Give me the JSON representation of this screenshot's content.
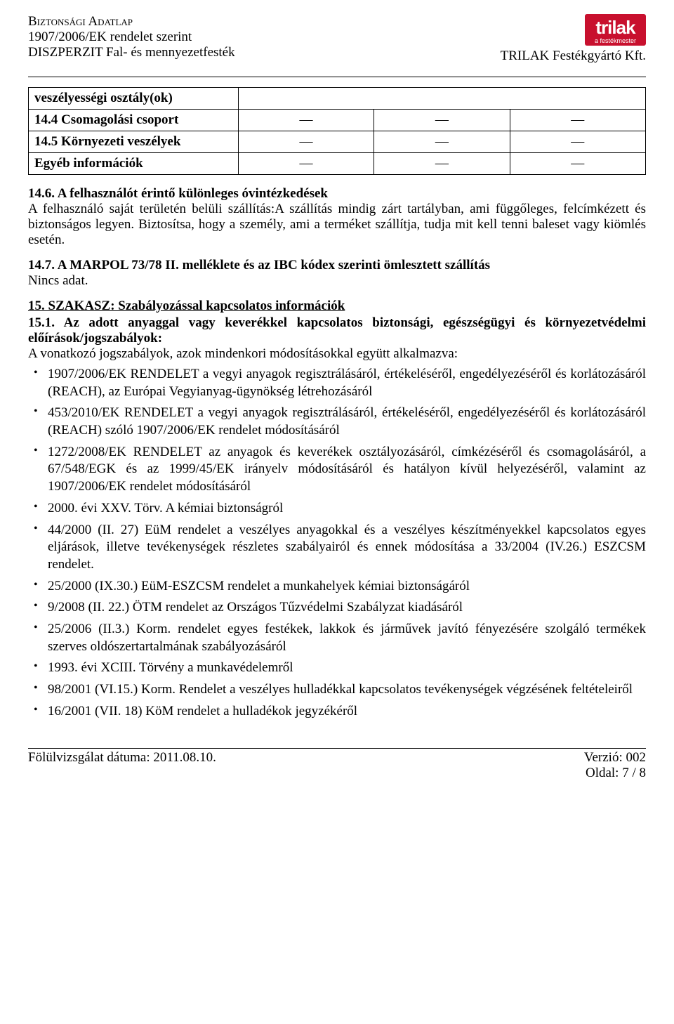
{
  "header": {
    "title": "Biztonsági Adatlap",
    "regulation": "1907/2006/EK rendelet szerint",
    "product": "DISZPERZIT Fal- és mennyezetfesték",
    "logo_main": "trilak",
    "logo_sub": "a festékmester",
    "company": "TRILAK Festékgyártó Kft."
  },
  "table": {
    "rows": [
      {
        "label": "veszélyességi osztály(ok)",
        "v1": "",
        "v2": "",
        "v3": ""
      },
      {
        "label": "14.4 Csomagolási csoport",
        "v1": "—",
        "v2": "—",
        "v3": "—"
      },
      {
        "label": "14.5 Környezeti veszélyek",
        "v1": "—",
        "v2": "—",
        "v3": "—"
      },
      {
        "label": "Egyéb információk",
        "v1": "—",
        "v2": "—",
        "v3": "—"
      }
    ]
  },
  "s14_6": {
    "heading": "14.6. A felhasználót érintő különleges óvintézkedések",
    "body": "A felhasználó saját területén belüli szállítás:A szállítás mindig zárt tartályban, ami függőleges, felcímkézett és biztonságos legyen. Biztosítsa, hogy a személy, ami a terméket szállítja, tudja mit kell tenni baleset vagy kiömlés esetén."
  },
  "s14_7": {
    "heading": "14.7. A MARPOL 73/78 II. melléklete és az IBC kódex szerinti ömlesztett szállítás",
    "body": "Nincs adat."
  },
  "s15": {
    "title": "15. SZAKASZ: Szabályozással kapcsolatos információk",
    "subheading": "15.1. Az adott anyaggal vagy keverékkel kapcsolatos biztonsági, egészségügyi és környezetvédelmi előírások/jogszabályok:",
    "intro": "A vonatkozó jogszabályok, azok mindenkori módosításokkal együtt alkalmazva:",
    "bullets": [
      "1907/2006/EK RENDELET a vegyi anyagok regisztrálásáról, értékeléséről, engedélyezéséről és korlátozásáról (REACH), az Európai Vegyianyag-ügynökség létrehozásáról",
      "453/2010/EK RENDELET a vegyi anyagok regisztrálásáról, értékeléséről, engedélyezéséről és korlátozásáról (REACH) szóló 1907/2006/EK rendelet módosításáról",
      "1272/2008/EK RENDELET az anyagok és keverékek osztályozásáról, címkézéséről és csomagolásáról, a 67/548/EGK és az 1999/45/EK irányelv módosításáról és hatályon kívül helyezéséről, valamint az 1907/2006/EK rendelet módosításáról",
      "2000. évi XXV. Törv. A kémiai biztonságról",
      "44/2000 (II. 27) EüM rendelet a veszélyes anyagokkal és a veszélyes készítményekkel kapcsolatos egyes eljárások, illetve tevékenységek részletes szabályairól és ennek módosítása a 33/2004 (IV.26.) ESZCSM rendelet.",
      "25/2000 (IX.30.) EüM-ESZCSM rendelet a munkahelyek kémiai biztonságáról",
      "9/2008 (II. 22.) ÖTM rendelet az Országos Tűzvédelmi Szabályzat kiadásáról",
      "25/2006 (II.3.) Korm. rendelet egyes festékek, lakkok és járművek javító fényezésére szolgáló termékek szerves oldószertartalmának szabályozásáról",
      "1993. évi XCIII. Törvény a munkavédelemről",
      "98/2001 (VI.15.) Korm. Rendelet a veszélyes hulladékkal kapcsolatos tevékenységek végzésének feltételeiről",
      "16/2001 (VII. 18) KöM rendelet a hulladékok jegyzékéről"
    ]
  },
  "footer": {
    "revision": "Fölülvizsgálat dátuma: 2011.08.10.",
    "version": "Verzió: 002",
    "page": "Oldal: 7 / 8"
  }
}
